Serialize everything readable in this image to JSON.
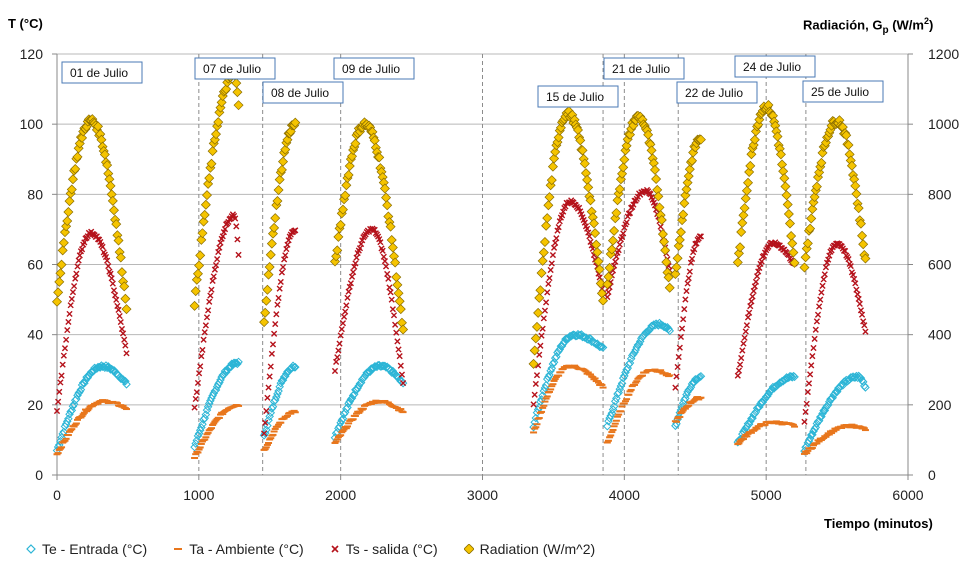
{
  "chart_data": {
    "type": "scatter",
    "y_left_title": "T (°C)",
    "y_right_title_main": "Radiación, G",
    "y_right_title_sub": "p",
    "y_right_title_unit": "(W/m",
    "y_right_title_sup": "2",
    "y_right_title_close": ")",
    "x_title": "Tiempo (minutos)",
    "xlim": [
      0,
      6000
    ],
    "ylim_left": [
      0,
      120
    ],
    "ylim_right": [
      0,
      1200
    ],
    "x_ticks": [
      "0",
      "1000",
      "2000",
      "3000",
      "4000",
      "5000",
      "6000"
    ],
    "y_left_ticks": [
      "0",
      "20",
      "40",
      "60",
      "80",
      "100",
      "120"
    ],
    "y_right_ticks": [
      "0",
      "200",
      "400",
      "600",
      "800",
      "1000",
      "1200"
    ],
    "grid": "horizontal",
    "legend_position": "bottom",
    "day_markers": [
      {
        "x": 0,
        "label": "01 de Julio",
        "red": true
      },
      {
        "x": 1000,
        "label": "07 de Julio",
        "red": false
      },
      {
        "x": 1450,
        "label": "08 de Julio",
        "red": false
      },
      {
        "x": 2000,
        "label": "09 de Julio",
        "red": false
      },
      {
        "x": 3000,
        "label": "",
        "red": false
      },
      {
        "x": 3850,
        "label": "15 de Julio",
        "red": false
      },
      {
        "x": 4000,
        "label": "21 de Julio",
        "red": false
      },
      {
        "x": 4380,
        "label": "22 de Julio",
        "red": false
      },
      {
        "x": 5000,
        "label": "24 de Julio",
        "red": false
      },
      {
        "x": 5280,
        "label": "25 de Julio",
        "red": false
      },
      {
        "x": 6000,
        "label": "",
        "red": false
      }
    ],
    "series": [
      {
        "name": "Te - Entrada (°C)",
        "color": "#2cb5d6",
        "marker": "diamond-open",
        "axis": "left",
        "segments": [
          {
            "x0": 0,
            "x1": 490,
            "start": 7,
            "peak": 31,
            "peak_x": 320,
            "end": 26
          },
          {
            "x0": 970,
            "x1": 1280,
            "start": 8,
            "peak": 32,
            "peak_x": 1280,
            "end": 32
          },
          {
            "x0": 1460,
            "x1": 1680,
            "start": 11,
            "peak": 31,
            "peak_x": 1680,
            "end": 31
          },
          {
            "x0": 1960,
            "x1": 2440,
            "start": 11,
            "peak": 31,
            "peak_x": 2280,
            "end": 26
          },
          {
            "x0": 3360,
            "x1": 3850,
            "start": 14,
            "peak": 40,
            "peak_x": 3650,
            "end": 36
          },
          {
            "x0": 3880,
            "x1": 4320,
            "start": 14,
            "peak": 43,
            "peak_x": 4250,
            "end": 41
          },
          {
            "x0": 4360,
            "x1": 4540,
            "start": 14,
            "peak": 28,
            "peak_x": 4540,
            "end": 28
          },
          {
            "x0": 4800,
            "x1": 5200,
            "start": 9,
            "peak": 28,
            "peak_x": 5200,
            "end": 28
          },
          {
            "x0": 5270,
            "x1": 5700,
            "start": 7,
            "peak": 28,
            "peak_x": 5650,
            "end": 25
          }
        ]
      },
      {
        "name": "Ta - Ambiente (°C)",
        "color": "#e8761c",
        "marker": "dash",
        "axis": "left",
        "segments": [
          {
            "x0": 0,
            "x1": 490,
            "start": 6,
            "peak": 21,
            "peak_x": 330,
            "end": 19
          },
          {
            "x0": 970,
            "x1": 1280,
            "start": 5,
            "peak": 20,
            "peak_x": 1280,
            "end": 20
          },
          {
            "x0": 1460,
            "x1": 1680,
            "start": 7,
            "peak": 18,
            "peak_x": 1680,
            "end": 18
          },
          {
            "x0": 1960,
            "x1": 2440,
            "start": 9,
            "peak": 21,
            "peak_x": 2270,
            "end": 18
          },
          {
            "x0": 3360,
            "x1": 3850,
            "start": 12,
            "peak": 31,
            "peak_x": 3620,
            "end": 25
          },
          {
            "x0": 3880,
            "x1": 4320,
            "start": 9,
            "peak": 30,
            "peak_x": 4200,
            "end": 28
          },
          {
            "x0": 4360,
            "x1": 4540,
            "start": 15,
            "peak": 22,
            "peak_x": 4540,
            "end": 22
          },
          {
            "x0": 4800,
            "x1": 5200,
            "start": 9,
            "peak": 15,
            "peak_x": 5050,
            "end": 14
          },
          {
            "x0": 5270,
            "x1": 5700,
            "start": 6,
            "peak": 14,
            "peak_x": 5600,
            "end": 13
          }
        ]
      },
      {
        "name": "Ts - salida (°C)",
        "color": "#b5121b",
        "marker": "x",
        "axis": "left",
        "segments": [
          {
            "x0": 0,
            "x1": 490,
            "start": 18,
            "peak": 69,
            "peak_x": 240,
            "end": 35
          },
          {
            "x0": 970,
            "x1": 1280,
            "start": 19,
            "peak": 74,
            "peak_x": 1250,
            "end": 63
          },
          {
            "x0": 1460,
            "x1": 1680,
            "start": 12,
            "peak": 70,
            "peak_x": 1680,
            "end": 70
          },
          {
            "x0": 1960,
            "x1": 2440,
            "start": 30,
            "peak": 70,
            "peak_x": 2220,
            "end": 26
          },
          {
            "x0": 3360,
            "x1": 3850,
            "start": 20,
            "peak": 78,
            "peak_x": 3620,
            "end": 52
          },
          {
            "x0": 3880,
            "x1": 4320,
            "start": 51,
            "peak": 81,
            "peak_x": 4150,
            "end": 58
          },
          {
            "x0": 4360,
            "x1": 4540,
            "start": 25,
            "peak": 68,
            "peak_x": 4540,
            "end": 68
          },
          {
            "x0": 4800,
            "x1": 5200,
            "start": 28,
            "peak": 66,
            "peak_x": 5050,
            "end": 60
          },
          {
            "x0": 5270,
            "x1": 5700,
            "start": 15,
            "peak": 66,
            "peak_x": 5500,
            "end": 41
          }
        ]
      },
      {
        "name": "Radiation (W/m^2)",
        "color": "#f5c400",
        "marker": "diamond-filled",
        "axis": "right",
        "segments": [
          {
            "x0": 0,
            "x1": 490,
            "start": 500,
            "peak": 1010,
            "peak_x": 240,
            "end": 480
          },
          {
            "x0": 970,
            "x1": 1280,
            "start": 490,
            "peak": 1140,
            "peak_x": 1250,
            "end": 1050
          },
          {
            "x0": 1460,
            "x1": 1680,
            "start": 440,
            "peak": 1000,
            "peak_x": 1680,
            "end": 1000
          },
          {
            "x0": 1960,
            "x1": 2440,
            "start": 600,
            "peak": 1000,
            "peak_x": 2170,
            "end": 410
          },
          {
            "x0": 3360,
            "x1": 3850,
            "start": 310,
            "peak": 1030,
            "peak_x": 3600,
            "end": 500
          },
          {
            "x0": 3880,
            "x1": 4320,
            "start": 540,
            "peak": 1020,
            "peak_x": 4100,
            "end": 530
          },
          {
            "x0": 4360,
            "x1": 4540,
            "start": 570,
            "peak": 960,
            "peak_x": 4540,
            "end": 960
          },
          {
            "x0": 4800,
            "x1": 5200,
            "start": 600,
            "peak": 1050,
            "peak_x": 5000,
            "end": 600
          },
          {
            "x0": 5270,
            "x1": 5700,
            "start": 600,
            "peak": 1010,
            "peak_x": 5500,
            "end": 610
          }
        ]
      }
    ]
  }
}
